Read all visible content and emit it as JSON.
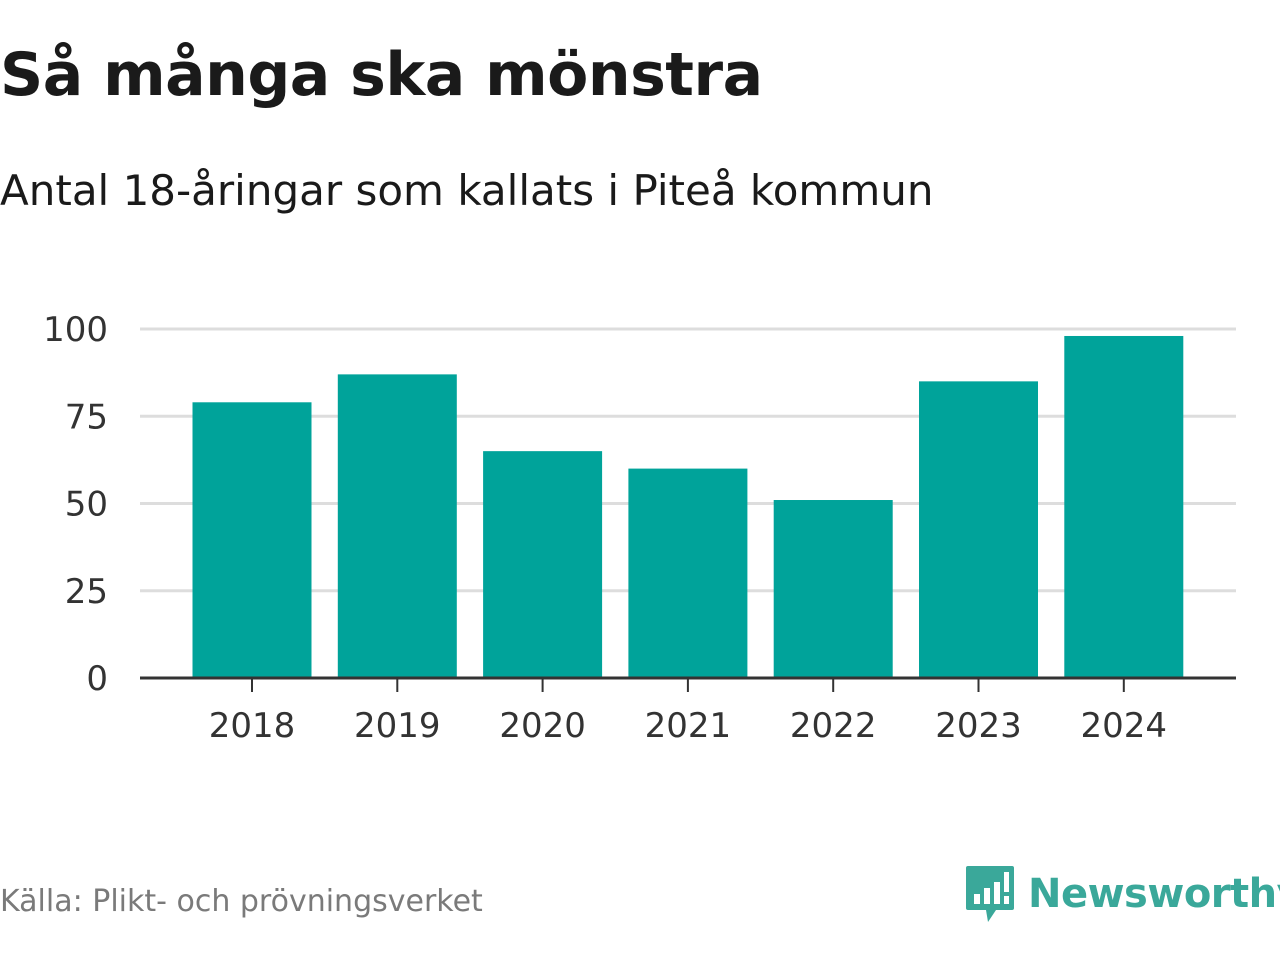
{
  "title": "Så många ska mönstra",
  "subtitle": "Antal 18-åringar som kallats i Piteå kommun",
  "source": "Källa: Plikt- och prövningsverket",
  "brand": {
    "name": "Newsworthy",
    "icon": "newsworthy-logo-icon",
    "color": "#3aa89a"
  },
  "colors": {
    "bar": "#00a39a",
    "grid": "#dddddd",
    "axis": "#333333"
  },
  "chart_data": {
    "type": "bar",
    "categories": [
      "2018",
      "2019",
      "2020",
      "2021",
      "2022",
      "2023",
      "2024"
    ],
    "values": [
      79,
      87,
      65,
      60,
      51,
      85,
      98
    ],
    "yticks": [
      0,
      25,
      50,
      75,
      100
    ],
    "ylim": [
      0,
      100
    ],
    "grid": true
  }
}
